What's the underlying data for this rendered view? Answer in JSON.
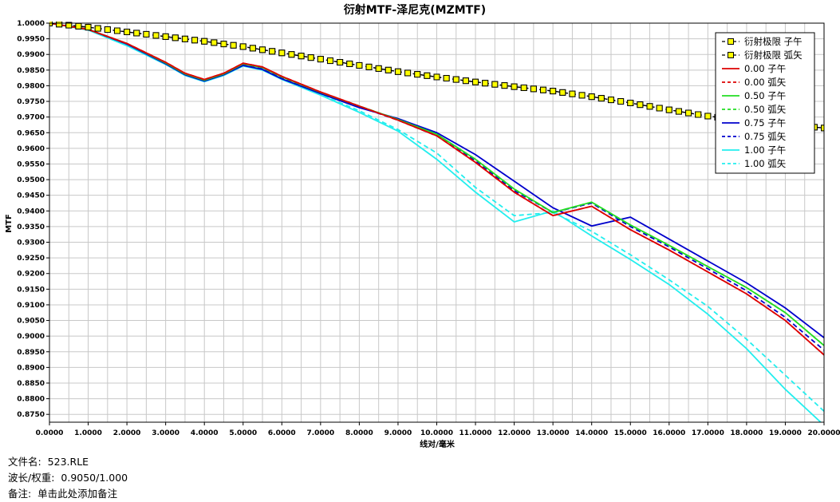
{
  "chart_data": {
    "type": "line",
    "title": "衍射MTF-泽尼克(MZMTF)",
    "xlabel": "线对/毫米",
    "ylabel": "MTF",
    "xlim": [
      0,
      20
    ],
    "ylim": [
      0.8725,
      1.0
    ],
    "x_ticks": [
      0,
      1,
      2,
      3,
      4,
      5,
      6,
      7,
      8,
      9,
      10,
      11,
      12,
      13,
      14,
      15,
      16,
      17,
      18,
      19,
      20
    ],
    "x_tick_labels": [
      "0.0000",
      "1.0000",
      "2.0000",
      "3.0000",
      "4.0000",
      "5.0000",
      "6.0000",
      "7.0000",
      "8.0000",
      "9.0000",
      "10.0000",
      "11.0000",
      "12.0000",
      "13.0000",
      "14.0000",
      "15.0000",
      "16.0000",
      "17.0000",
      "18.0000",
      "19.0000",
      "20.0000"
    ],
    "y_ticks": [
      1.0,
      0.995,
      0.99,
      0.985,
      0.98,
      0.975,
      0.97,
      0.965,
      0.96,
      0.955,
      0.95,
      0.945,
      0.94,
      0.935,
      0.93,
      0.925,
      0.92,
      0.915,
      0.91,
      0.905,
      0.9,
      0.895,
      0.89,
      0.885,
      0.88,
      0.875
    ],
    "y_tick_labels": [
      "1.0000",
      "0.9950",
      "0.9900",
      "0.9850",
      "0.9800",
      "0.9750",
      "0.9700",
      "0.9650",
      "0.9600",
      "0.9550",
      "0.9500",
      "0.9450",
      "0.9400",
      "0.9350",
      "0.9300",
      "0.9250",
      "0.9200",
      "0.9150",
      "0.9100",
      "0.9050",
      "0.9000",
      "0.8950",
      "0.8900",
      "0.8850",
      "0.8800",
      "0.8750"
    ],
    "grid": true,
    "legend_position": "top-right",
    "series": [
      {
        "name": "衍射极限 子午",
        "color": "#000000",
        "dash": "dashed",
        "marker": "square",
        "marker_color": "#ffff00",
        "x": [
          0,
          1,
          2,
          3,
          4,
          5,
          6,
          7,
          8,
          9,
          10,
          11,
          12,
          13,
          14,
          15,
          16,
          17,
          18,
          19,
          20
        ],
        "y": [
          1.0,
          0.9987,
          0.9972,
          0.9957,
          0.9942,
          0.9925,
          0.9905,
          0.9885,
          0.9865,
          0.9845,
          0.9828,
          0.9812,
          0.9797,
          0.9783,
          0.9765,
          0.9745,
          0.9723,
          0.9703,
          0.9688,
          0.9675,
          0.9665
        ]
      },
      {
        "name": "衍射极限 弧矢",
        "color": "#000000",
        "dash": "dashed",
        "marker": "square",
        "marker_color": "#ffff00",
        "x": [
          0,
          1,
          2,
          3,
          4,
          5,
          6,
          7,
          8,
          9,
          10,
          11,
          12,
          13,
          14,
          15,
          16,
          17,
          18,
          19,
          20
        ],
        "y": [
          1.0,
          0.9987,
          0.9972,
          0.9957,
          0.9942,
          0.9925,
          0.9905,
          0.9885,
          0.9865,
          0.9845,
          0.9828,
          0.9812,
          0.9797,
          0.9783,
          0.9765,
          0.9745,
          0.9723,
          0.9703,
          0.9688,
          0.9675,
          0.9665
        ]
      },
      {
        "name": "0.00 子午",
        "color": "#dd0000",
        "dash": "solid",
        "x": [
          0,
          1,
          2,
          3,
          3.5,
          4,
          4.5,
          5,
          5.5,
          6,
          7,
          8,
          9,
          10,
          11,
          12,
          13,
          14,
          15,
          16,
          17,
          18,
          19,
          20
        ],
        "y": [
          1.0,
          0.998,
          0.9935,
          0.9875,
          0.984,
          0.982,
          0.984,
          0.9872,
          0.986,
          0.983,
          0.978,
          0.9735,
          0.969,
          0.964,
          0.9555,
          0.946,
          0.9385,
          0.9415,
          0.934,
          0.9275,
          0.9205,
          0.9135,
          0.905,
          0.894
        ]
      },
      {
        "name": "0.00 弧矢",
        "color": "#dd0000",
        "dash": "dashed",
        "x": [
          0,
          1,
          2,
          3,
          3.5,
          4,
          4.5,
          5,
          5.5,
          6,
          7,
          8,
          9,
          10,
          11,
          12,
          13,
          14,
          15,
          16,
          17,
          18,
          19,
          20
        ],
        "y": [
          1.0,
          0.998,
          0.9935,
          0.9875,
          0.984,
          0.982,
          0.984,
          0.9872,
          0.986,
          0.983,
          0.978,
          0.9735,
          0.969,
          0.964,
          0.9555,
          0.946,
          0.9385,
          0.9415,
          0.934,
          0.9275,
          0.9205,
          0.9135,
          0.905,
          0.894
        ]
      },
      {
        "name": "0.50 子午",
        "color": "#22dd22",
        "dash": "solid",
        "x": [
          0,
          1,
          2,
          3,
          3.5,
          4,
          4.5,
          5,
          5.5,
          6,
          7,
          8,
          9,
          10,
          11,
          12,
          13,
          14,
          15,
          16,
          17,
          18,
          19,
          20
        ],
        "y": [
          1.0,
          0.998,
          0.9935,
          0.9873,
          0.9838,
          0.9818,
          0.9838,
          0.987,
          0.9858,
          0.9828,
          0.9779,
          0.9735,
          0.9692,
          0.9645,
          0.9565,
          0.947,
          0.9395,
          0.9428,
          0.9355,
          0.929,
          0.9222,
          0.9155,
          0.9075,
          0.897
        ]
      },
      {
        "name": "0.50 弧矢",
        "color": "#22dd22",
        "dash": "dashed",
        "x": [
          0,
          1,
          2,
          3,
          3.5,
          4,
          4.5,
          5,
          5.5,
          6,
          7,
          8,
          9,
          10,
          11,
          12,
          13,
          14,
          15,
          16,
          17,
          18,
          19,
          20
        ],
        "y": [
          1.0,
          0.998,
          0.9935,
          0.9873,
          0.9838,
          0.9818,
          0.9838,
          0.987,
          0.9858,
          0.9828,
          0.9779,
          0.9735,
          0.9692,
          0.9645,
          0.9565,
          0.947,
          0.9395,
          0.9428,
          0.9355,
          0.929,
          0.9222,
          0.9155,
          0.9075,
          0.897
        ]
      },
      {
        "name": "0.75 子午",
        "color": "#0000cc",
        "dash": "solid",
        "x": [
          0,
          1,
          2,
          3,
          3.5,
          4,
          4.5,
          5,
          5.5,
          6,
          7,
          8,
          9,
          10,
          11,
          12,
          13,
          14,
          15,
          16,
          17,
          18,
          19,
          20
        ],
        "y": [
          1.0,
          0.998,
          0.9933,
          0.987,
          0.9835,
          0.9815,
          0.9835,
          0.9865,
          0.9852,
          0.9822,
          0.9775,
          0.973,
          0.9695,
          0.965,
          0.958,
          0.9495,
          0.941,
          0.9352,
          0.938,
          0.931,
          0.924,
          0.917,
          0.909,
          0.8995
        ]
      },
      {
        "name": "0.75 弧矢",
        "color": "#0000cc",
        "dash": "dashed",
        "x": [
          0,
          1,
          2,
          3,
          3.5,
          4,
          4.5,
          5,
          5.5,
          6,
          7,
          8,
          9,
          10,
          11,
          12,
          13,
          14,
          15,
          16,
          17,
          18,
          19,
          20
        ],
        "y": [
          1.0,
          0.998,
          0.9933,
          0.9872,
          0.9837,
          0.9817,
          0.9837,
          0.9868,
          0.9856,
          0.9826,
          0.9777,
          0.9733,
          0.969,
          0.964,
          0.956,
          0.9465,
          0.9395,
          0.9425,
          0.935,
          0.9285,
          0.9215,
          0.9145,
          0.906,
          0.8955
        ]
      },
      {
        "name": "1.00 子午",
        "color": "#22eeee",
        "dash": "solid",
        "x": [
          0,
          1,
          2,
          3,
          3.5,
          4,
          4.5,
          5,
          5.5,
          6,
          7,
          8,
          9,
          10,
          11,
          12,
          13,
          14,
          15,
          16,
          17,
          18,
          19,
          20
        ],
        "y": [
          1.0,
          0.9978,
          0.9928,
          0.9868,
          0.9833,
          0.9813,
          0.9833,
          0.9863,
          0.985,
          0.982,
          0.977,
          0.9715,
          0.9655,
          0.9565,
          0.946,
          0.9365,
          0.94,
          0.932,
          0.9245,
          0.9165,
          0.907,
          0.896,
          0.883,
          0.8715
        ]
      },
      {
        "name": "1.00 弧矢",
        "color": "#22eeee",
        "dash": "dashed",
        "x": [
          0,
          1,
          2,
          3,
          3.5,
          4,
          4.5,
          5,
          5.5,
          6,
          7,
          8,
          9,
          10,
          11,
          12,
          13,
          14,
          15,
          16,
          17,
          18,
          19,
          20
        ],
        "y": [
          1.0,
          0.998,
          0.993,
          0.987,
          0.9835,
          0.9815,
          0.9835,
          0.9865,
          0.9852,
          0.9822,
          0.9772,
          0.972,
          0.966,
          0.9585,
          0.9475,
          0.9385,
          0.9395,
          0.9335,
          0.926,
          0.918,
          0.9095,
          0.899,
          0.8875,
          0.876
        ]
      }
    ]
  },
  "footer": {
    "filename_label": "文件名:",
    "filename_value": "523.RLE",
    "wavelength_label": "波长/权重:",
    "wavelength_value": "0.9050/1.000",
    "note_label": "备注:",
    "note_value": "单击此处添加备注"
  }
}
